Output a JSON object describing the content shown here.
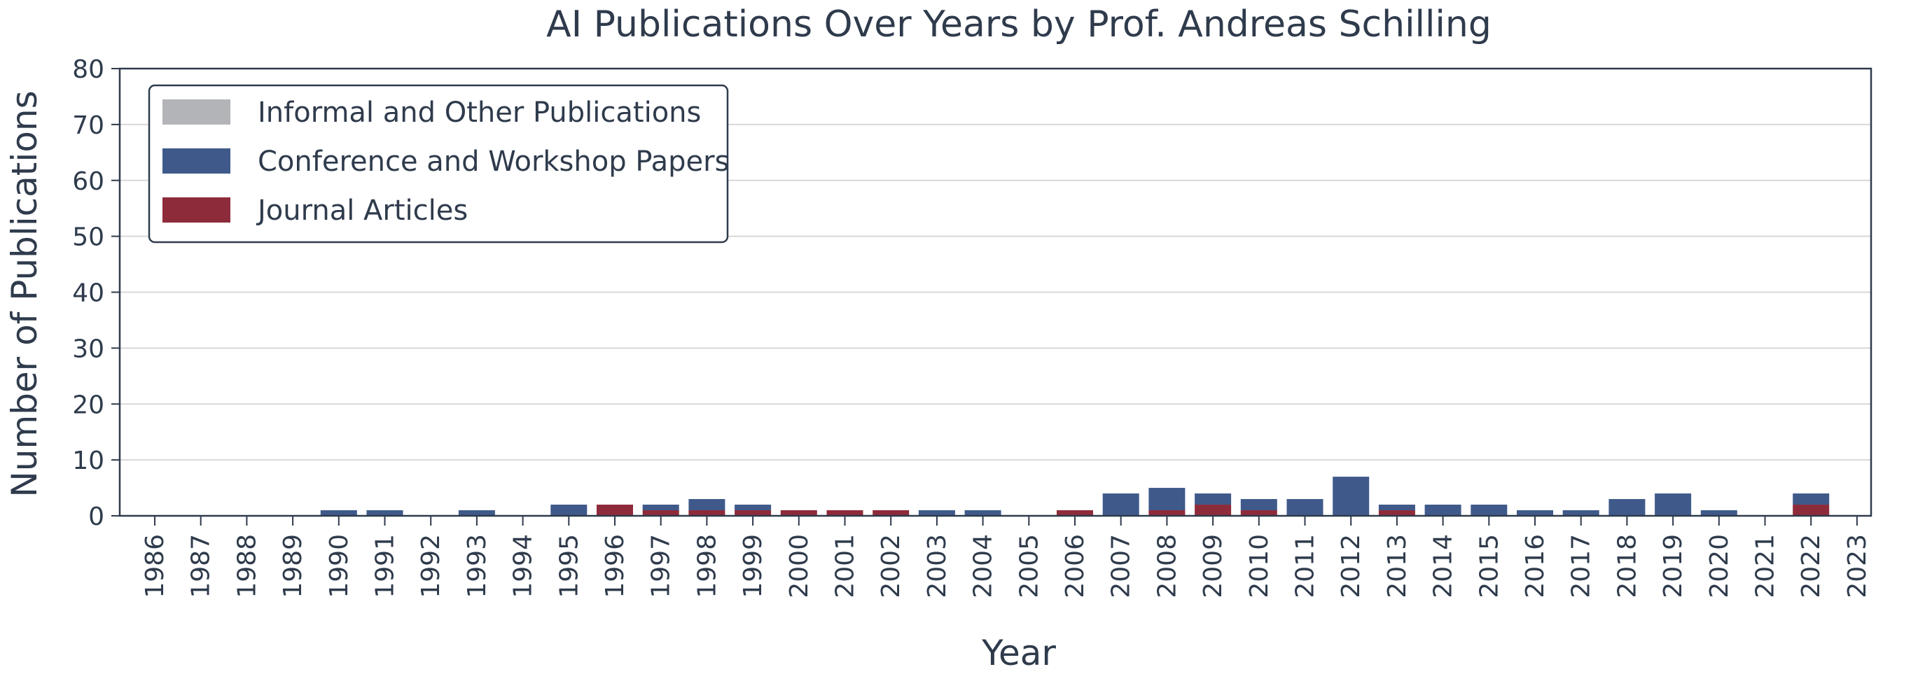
{
  "chart_data": {
    "type": "bar",
    "stacked": true,
    "title": "AI Publications Over Years by Prof. Andreas Schilling",
    "xlabel": "Year",
    "ylabel": "Number of Publications",
    "ylim": [
      0,
      80
    ],
    "yticks": [
      "0",
      "10",
      "20",
      "30",
      "40",
      "50",
      "60",
      "70",
      "80"
    ],
    "grid": "horizontal",
    "legend_position": "top-left",
    "categories": [
      "1986",
      "1987",
      "1988",
      "1989",
      "1990",
      "1991",
      "1992",
      "1993",
      "1994",
      "1995",
      "1996",
      "1997",
      "1998",
      "1999",
      "2000",
      "2001",
      "2002",
      "2003",
      "2004",
      "2005",
      "2006",
      "2007",
      "2008",
      "2009",
      "2010",
      "2011",
      "2012",
      "2013",
      "2014",
      "2015",
      "2016",
      "2017",
      "2018",
      "2019",
      "2020",
      "2021",
      "2022",
      "2023"
    ],
    "series": [
      {
        "name": "Informal and Other Publications",
        "color": "#b2b4b7",
        "values": [
          0,
          0,
          0,
          0,
          0,
          0,
          0,
          0,
          0,
          0,
          0,
          0,
          0,
          0,
          0,
          0,
          0,
          0,
          0,
          0,
          0,
          0,
          0,
          0,
          0,
          0,
          0,
          0,
          0,
          0,
          0,
          0,
          0,
          0,
          0,
          0,
          0,
          0
        ]
      },
      {
        "name": "Conference and Workshop Papers",
        "color": "#3f5a8a",
        "values": [
          0,
          0,
          0,
          0,
          1,
          1,
          0,
          1,
          0,
          2,
          0,
          1,
          2,
          1,
          0,
          0,
          0,
          1,
          1,
          0,
          0,
          4,
          4,
          2,
          2,
          3,
          7,
          1,
          2,
          2,
          1,
          1,
          3,
          4,
          1,
          0,
          2,
          0
        ]
      },
      {
        "name": "Journal Articles",
        "color": "#8e2b3a",
        "values": [
          0,
          0,
          0,
          0,
          0,
          0,
          0,
          0,
          0,
          0,
          2,
          1,
          1,
          1,
          1,
          1,
          1,
          0,
          0,
          0,
          1,
          0,
          1,
          2,
          1,
          0,
          0,
          1,
          0,
          0,
          0,
          0,
          0,
          0,
          0,
          0,
          2,
          0
        ]
      }
    ]
  }
}
